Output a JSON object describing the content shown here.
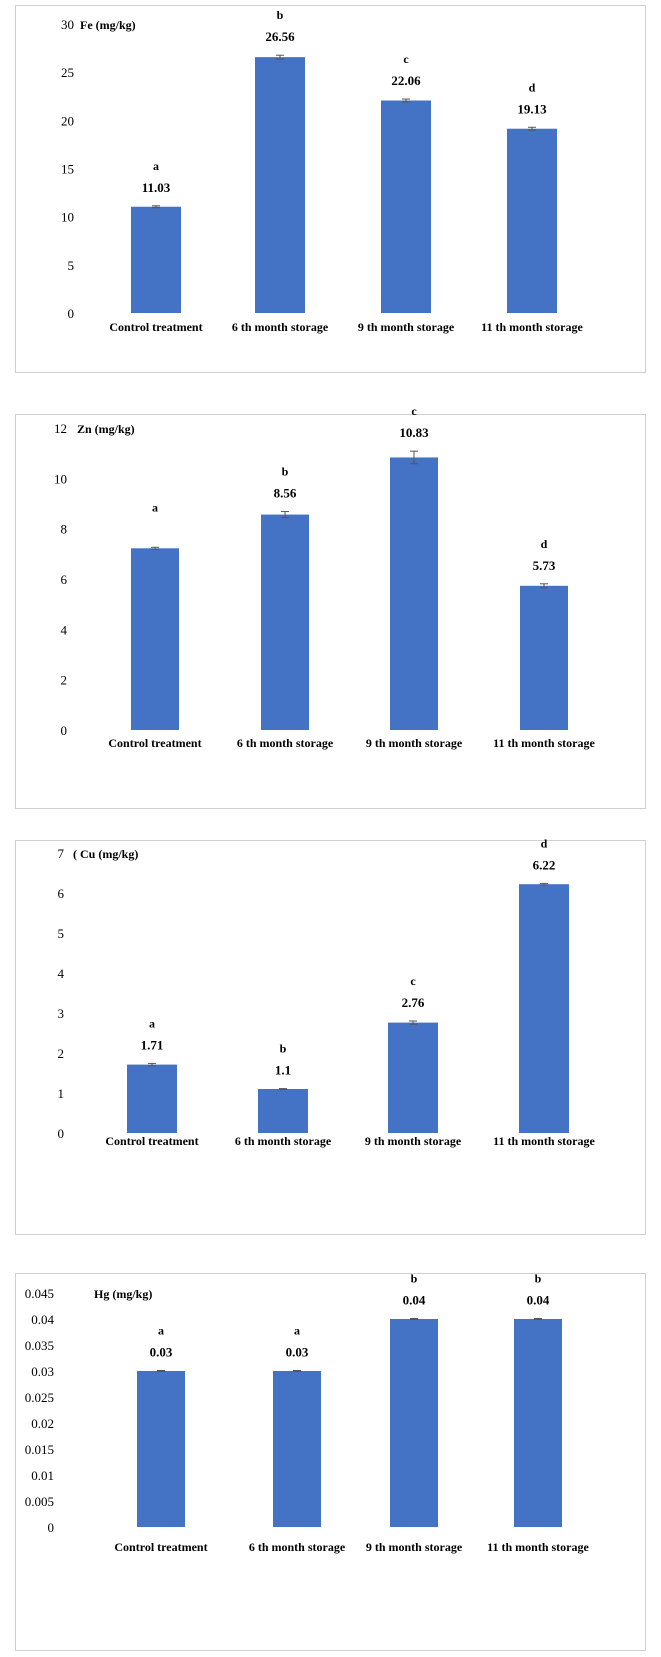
{
  "chart_data": [
    {
      "type": "bar",
      "ylabel": "Fe (mg/kg)",
      "ylim": [
        0,
        30
      ],
      "yticks": [
        "0",
        "5",
        "10",
        "15",
        "20",
        "25",
        "30"
      ],
      "categories": [
        "Control treatment",
        "6 th month storage",
        "9 th month storage",
        "11 th month storage"
      ],
      "values": [
        11.03,
        26.56,
        22.06,
        19.13
      ],
      "value_labels": [
        "11.03",
        "26.56",
        "22.06",
        "19.13"
      ],
      "letters": [
        "a",
        "b",
        "c",
        "d"
      ],
      "errors": [
        0.1,
        0.2,
        0.15,
        0.15
      ],
      "bar_color": "#4472c4"
    },
    {
      "type": "bar",
      "ylabel": "Zn (mg/kg)",
      "ylim": [
        0,
        12
      ],
      "yticks": [
        "0",
        "2",
        "4",
        "6",
        "8",
        "10",
        "12"
      ],
      "categories": [
        "Control treatment",
        "6 th month storage",
        "9 th month storage",
        "11 th month storage"
      ],
      "values": [
        7.22,
        8.56,
        10.83,
        5.73
      ],
      "value_labels": [
        "",
        "8.56",
        "10.83",
        "5.73"
      ],
      "letters": [
        "a",
        "b",
        "c",
        "d"
      ],
      "errors": [
        0.04,
        0.12,
        0.25,
        0.08
      ],
      "bar_color": "#4472c4"
    },
    {
      "type": "bar",
      "ylabel": "( Cu (mg/kg)",
      "ylim": [
        0,
        7
      ],
      "yticks": [
        "0",
        "1",
        "2",
        "3",
        "4",
        "5",
        "6",
        "7"
      ],
      "categories": [
        "Control treatment",
        "6 th month storage",
        "9 th month storage",
        "11 th month storage"
      ],
      "values": [
        1.71,
        1.1,
        2.76,
        6.22
      ],
      "value_labels": [
        "1.71",
        "1.1",
        "2.76",
        "6.22"
      ],
      "letters": [
        "a",
        "b",
        "c",
        "d"
      ],
      "errors": [
        0.03,
        0.01,
        0.04,
        0.02
      ],
      "bar_color": "#4472c4"
    },
    {
      "type": "bar",
      "ylabel": "Hg (mg/kg)",
      "ylim": [
        0,
        0.045
      ],
      "yticks": [
        "0",
        "0.005",
        "0.01",
        "0.015",
        "0.02",
        "0.025",
        "0.03",
        "0.035",
        "0.04",
        "0.045"
      ],
      "categories": [
        "Control treatment",
        "6 th month storage",
        "9 th month storage",
        "11 th  month storage"
      ],
      "values": [
        0.03,
        0.03,
        0.04,
        0.04
      ],
      "value_labels": [
        "0.03",
        "0.03",
        "0.04",
        "0.04"
      ],
      "letters": [
        "a",
        "a",
        "b",
        "b"
      ],
      "errors": [
        0.0001,
        0.0001,
        0.0001,
        0.0001
      ],
      "bar_color": "#4472c4"
    }
  ]
}
